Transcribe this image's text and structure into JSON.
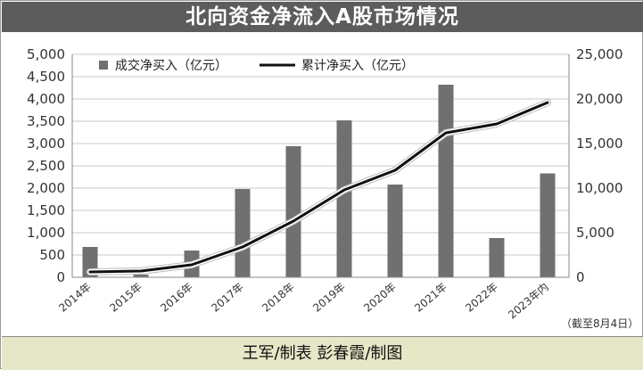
{
  "title": "北向资金净流入A股市场情况",
  "footer": "王军/制表 彭春霞/制图",
  "note": "（截至8月4日）",
  "colors": {
    "bar": "#707070",
    "line": "#111111",
    "line_glow": "#ffffff",
    "title_bg": "#5c5c5c",
    "footer_bg": "#e6e7c7"
  },
  "chart_data": {
    "type": "bar+line",
    "categories": [
      "2014年",
      "2015年",
      "2016年",
      "2017年",
      "2018年",
      "2019年",
      "2020年",
      "2021年",
      "2022年",
      "2023年内"
    ],
    "series": [
      {
        "name": "成交净买入（亿元）",
        "type": "bar",
        "axis": "left",
        "values": [
          680,
          60,
          600,
          1980,
          2940,
          3520,
          2080,
          4320,
          880,
          2330
        ]
      },
      {
        "name": "累计净买入（亿元）",
        "type": "line",
        "axis": "right",
        "values": [
          600,
          700,
          1400,
          3400,
          6300,
          9800,
          12000,
          16200,
          17200,
          19600
        ]
      }
    ],
    "y_left": {
      "min": 0,
      "max": 5000,
      "ticks": [
        0,
        500,
        1000,
        1500,
        2000,
        2500,
        3000,
        3500,
        4000,
        4500,
        5000
      ],
      "tick_labels": [
        "0",
        "500",
        "1,000",
        "1,500",
        "2,000",
        "2,500",
        "3,000",
        "3,500",
        "4,000",
        "4,500",
        "5,000"
      ]
    },
    "y_right": {
      "min": 0,
      "max": 25000,
      "ticks": [
        0,
        5000,
        10000,
        15000,
        20000,
        25000
      ],
      "tick_labels": [
        "0",
        "5,000",
        "10,000",
        "15,000",
        "20,000",
        "25,000"
      ]
    },
    "grid": true,
    "legend": "top-left"
  }
}
